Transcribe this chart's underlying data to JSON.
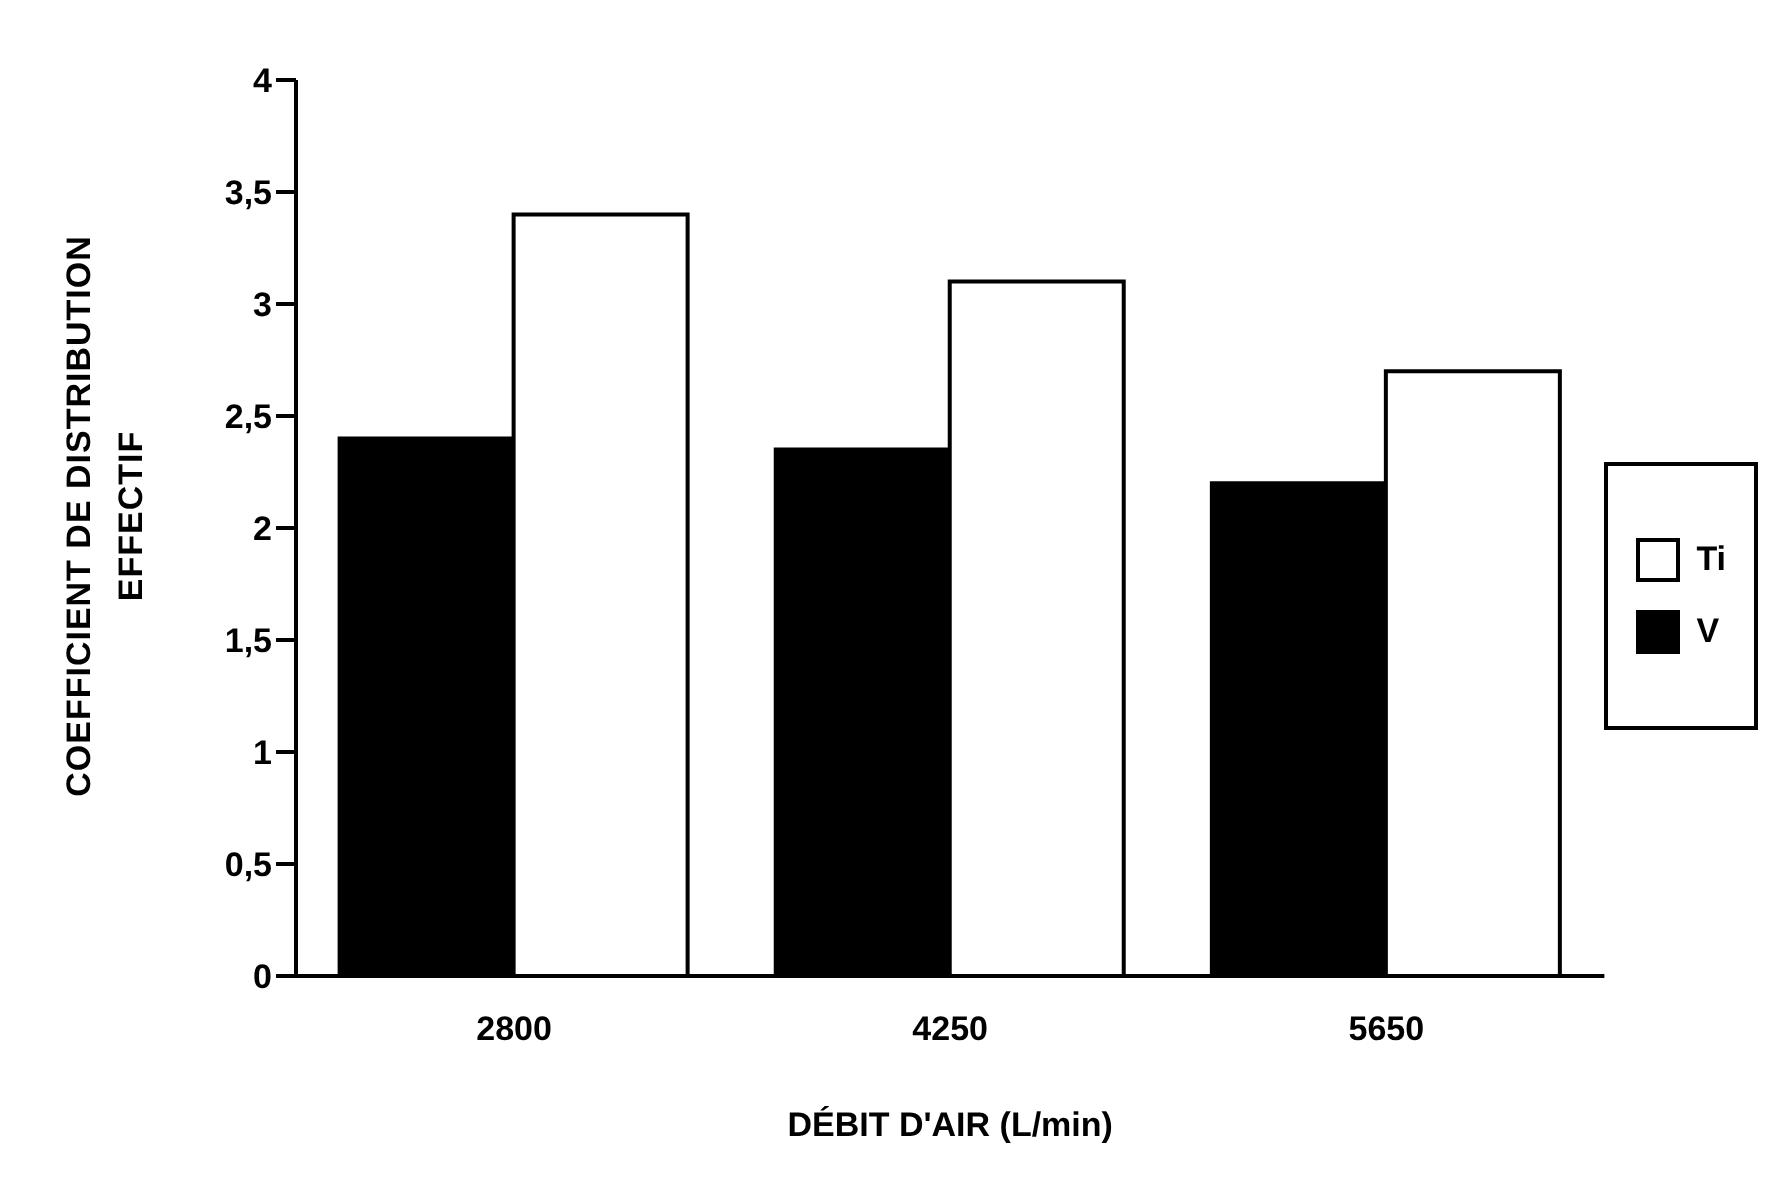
{
  "chart_data": {
    "type": "bar",
    "xlabel": "DÉBIT D'AIR (L/min)",
    "ylabel": "COEFFICIENT DE DISTRIBUTION EFFECTIF",
    "categories": [
      "2800",
      "4250",
      "5650"
    ],
    "series": [
      {
        "name": "V",
        "color": "#000000",
        "values": [
          2.4,
          2.35,
          2.2
        ]
      },
      {
        "name": "Ti",
        "color": "#ffffff",
        "values": [
          3.4,
          3.1,
          2.7
        ]
      }
    ],
    "ylim": [
      0,
      4
    ],
    "yticks": [
      0,
      {
        "value": 0.5,
        "label": "0,5"
      },
      1,
      {
        "value": 1.5,
        "label": "1,5"
      },
      2,
      {
        "value": 2.5,
        "label": "2,5"
      },
      3,
      {
        "value": 3.5,
        "label": "3,5"
      },
      4
    ],
    "grid": false,
    "legend": "right"
  }
}
